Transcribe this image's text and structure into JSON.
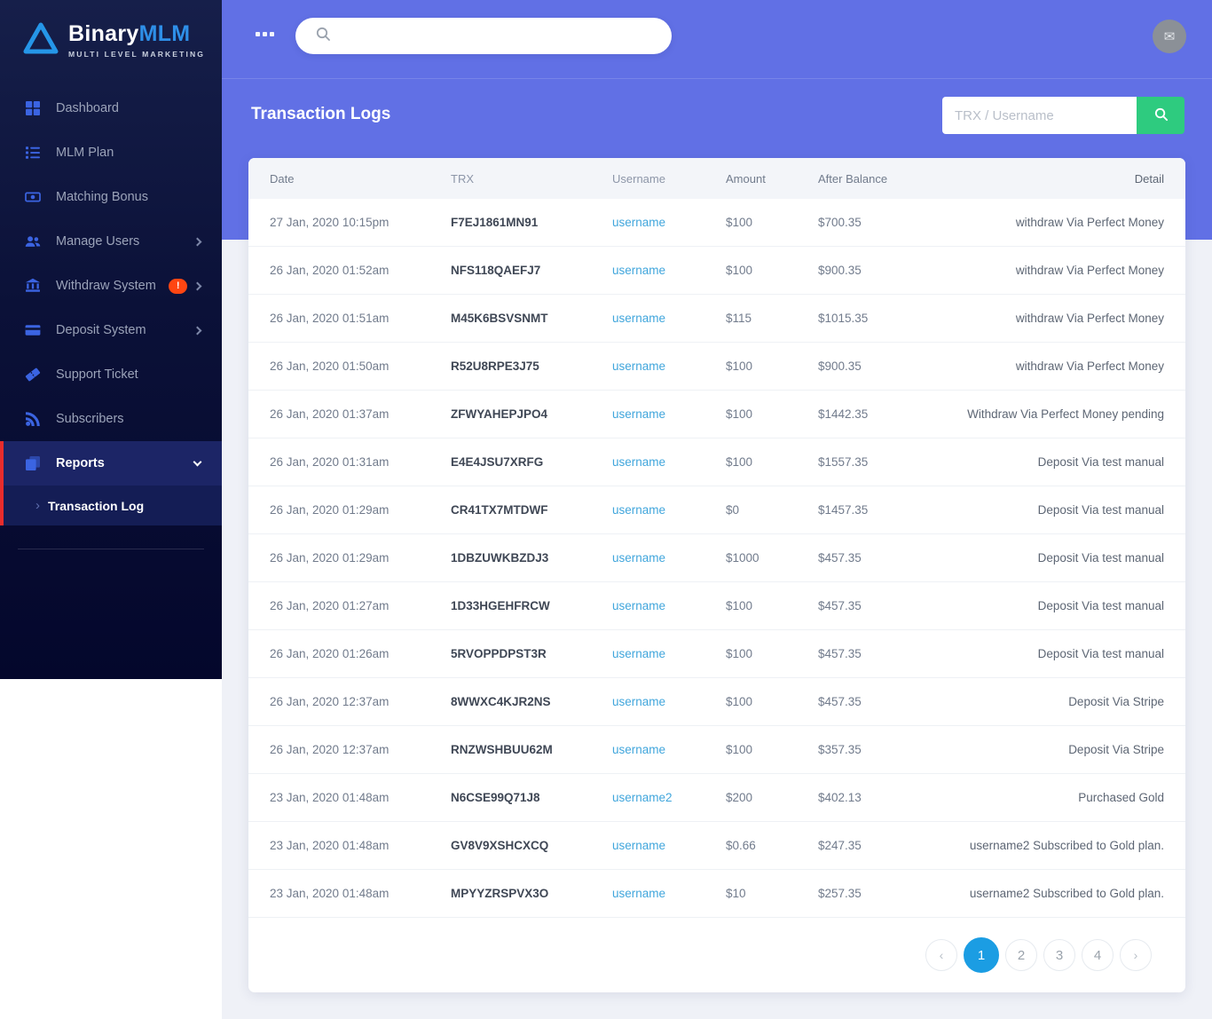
{
  "brand": {
    "name_primary": "Binary",
    "name_secondary": "MLM",
    "tagline": "MULTI LEVEL MARKETING"
  },
  "topbar": {
    "search_placeholder": "",
    "avatar_icon": "envelope-icon"
  },
  "page": {
    "title": "Transaction Logs",
    "search_placeholder": "TRX / Username",
    "search_button_icon": "search-icon"
  },
  "sidebar": {
    "items": [
      {
        "label": "Dashboard",
        "icon": "dashboard-icon",
        "chevron": null,
        "badge": null,
        "active": false
      },
      {
        "label": "MLM Plan",
        "icon": "list-icon",
        "chevron": null,
        "badge": null,
        "active": false
      },
      {
        "label": "Matching Bonus",
        "icon": "money-bill-icon",
        "chevron": null,
        "badge": null,
        "active": false
      },
      {
        "label": "Manage Users",
        "icon": "users-icon",
        "chevron": "right",
        "badge": null,
        "active": false
      },
      {
        "label": "Withdraw System",
        "icon": "bank-icon",
        "chevron": "right",
        "badge": "!",
        "active": false
      },
      {
        "label": "Deposit System",
        "icon": "credit-card-icon",
        "chevron": "right",
        "badge": null,
        "active": false
      },
      {
        "label": "Support Ticket",
        "icon": "ticket-icon",
        "chevron": null,
        "badge": null,
        "active": false
      },
      {
        "label": "Subscribers",
        "icon": "rss-icon",
        "chevron": null,
        "badge": null,
        "active": false
      },
      {
        "label": "Reports",
        "icon": "copy-icon",
        "chevron": "down",
        "badge": null,
        "active": true,
        "children": [
          {
            "label": "Transaction Log",
            "arrow": "›"
          }
        ]
      }
    ]
  },
  "table": {
    "headers": [
      "Date",
      "TRX",
      "Username",
      "Amount",
      "After Balance",
      "Detail"
    ],
    "rows": [
      {
        "date": "27 Jan, 2020 10:15pm",
        "trx": "F7EJ1861MN91",
        "username": "username",
        "amount": "$100",
        "balance": "$700.35",
        "detail": "withdraw Via Perfect Money"
      },
      {
        "date": "26 Jan, 2020 01:52am",
        "trx": "NFS118QAEFJ7",
        "username": "username",
        "amount": "$100",
        "balance": "$900.35",
        "detail": "withdraw Via Perfect Money"
      },
      {
        "date": "26 Jan, 2020 01:51am",
        "trx": "M45K6BSVSNMT",
        "username": "username",
        "amount": "$115",
        "balance": "$1015.35",
        "detail": "withdraw Via Perfect Money"
      },
      {
        "date": "26 Jan, 2020 01:50am",
        "trx": "R52U8RPE3J75",
        "username": "username",
        "amount": "$100",
        "balance": "$900.35",
        "detail": "withdraw Via Perfect Money"
      },
      {
        "date": "26 Jan, 2020 01:37am",
        "trx": "ZFWYAHEPJPO4",
        "username": "username",
        "amount": "$100",
        "balance": "$1442.35",
        "detail": "Withdraw Via Perfect Money pending"
      },
      {
        "date": "26 Jan, 2020 01:31am",
        "trx": "E4E4JSU7XRFG",
        "username": "username",
        "amount": "$100",
        "balance": "$1557.35",
        "detail": "Deposit Via test manual"
      },
      {
        "date": "26 Jan, 2020 01:29am",
        "trx": "CR41TX7MTDWF",
        "username": "username",
        "amount": "$0",
        "balance": "$1457.35",
        "detail": "Deposit Via test manual"
      },
      {
        "date": "26 Jan, 2020 01:29am",
        "trx": "1DBZUWKBZDJ3",
        "username": "username",
        "amount": "$1000",
        "balance": "$457.35",
        "detail": "Deposit Via test manual"
      },
      {
        "date": "26 Jan, 2020 01:27am",
        "trx": "1D33HGEHFRCW",
        "username": "username",
        "amount": "$100",
        "balance": "$457.35",
        "detail": "Deposit Via test manual"
      },
      {
        "date": "26 Jan, 2020 01:26am",
        "trx": "5RVOPPDPST3R",
        "username": "username",
        "amount": "$100",
        "balance": "$457.35",
        "detail": "Deposit Via test manual"
      },
      {
        "date": "26 Jan, 2020 12:37am",
        "trx": "8WWXC4KJR2NS",
        "username": "username",
        "amount": "$100",
        "balance": "$457.35",
        "detail": "Deposit Via Stripe"
      },
      {
        "date": "26 Jan, 2020 12:37am",
        "trx": "RNZWSHBUU62M",
        "username": "username",
        "amount": "$100",
        "balance": "$357.35",
        "detail": "Deposit Via Stripe"
      },
      {
        "date": "23 Jan, 2020 01:48am",
        "trx": "N6CSE99Q71J8",
        "username": "username2",
        "amount": "$200",
        "balance": "$402.13",
        "detail": "Purchased Gold"
      },
      {
        "date": "23 Jan, 2020 01:48am",
        "trx": "GV8V9XSHCXCQ",
        "username": "username",
        "amount": "$0.66",
        "balance": "$247.35",
        "detail": "username2 Subscribed to Gold plan."
      },
      {
        "date": "23 Jan, 2020 01:48am",
        "trx": "MPYYZRSPVX3O",
        "username": "username",
        "amount": "$10",
        "balance": "$257.35",
        "detail": "username2 Subscribed to Gold plan."
      }
    ]
  },
  "pagination": {
    "prev": "‹",
    "next": "›",
    "pages": [
      "1",
      "2",
      "3",
      "4"
    ],
    "active": "1"
  },
  "colors": {
    "header_purple": "#6170e5",
    "sidebar_navy": "#0b1138",
    "accent_red": "#e82c2c",
    "badge_orange": "#ff4612",
    "search_green": "#2ecb7f",
    "link_blue": "#41a6dc",
    "pagination_blue": "#1b9de3"
  }
}
